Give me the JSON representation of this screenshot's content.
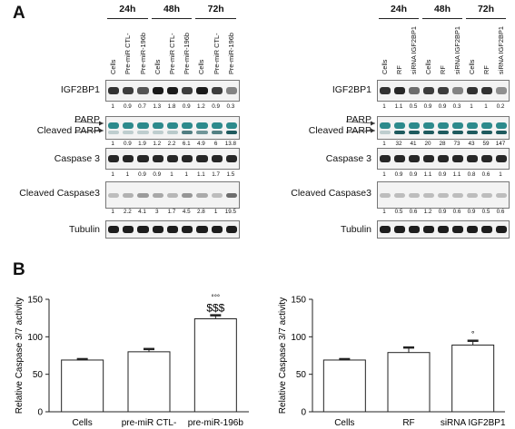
{
  "panel_a": {
    "letter": "A",
    "left": {
      "times": [
        "24h",
        "48h",
        "72h"
      ],
      "lanes": [
        "Cells",
        "Pre-miR CTL-",
        "Pre-miR-196b",
        "Cells",
        "Pre-miR CTL-",
        "Pre-miR-196b",
        "Cells",
        "Pre-miR CTL-",
        "Pre-miR-196b"
      ],
      "rows": [
        {
          "label": "IGF2BP1",
          "values": [
            "1",
            "0.9",
            "0.7",
            "1.3",
            "1.8",
            "0.9",
            "1.2",
            "0.9",
            "0.3"
          ]
        },
        {
          "label": "PARP",
          "label2": "Cleaved PARP",
          "values": [
            "1",
            "0.9",
            "1.9",
            "1.2",
            "2.2",
            "6.1",
            "4.9",
            "6",
            "13.8"
          ]
        },
        {
          "label": "Caspase 3",
          "values": [
            "1",
            "1",
            "0.9",
            "0.9",
            "1",
            "1",
            "1.1",
            "1.7",
            "1.5"
          ]
        },
        {
          "label": "Cleaved Caspase3",
          "values": [
            "1",
            "2.2",
            "4.1",
            "3",
            "1.7",
            "4.5",
            "2.8",
            "1",
            "19.5"
          ]
        },
        {
          "label": "Tubulin",
          "values": []
        }
      ]
    },
    "right": {
      "times": [
        "24h",
        "48h",
        "72h"
      ],
      "lanes": [
        "Cells",
        "RF",
        "siRNA IGF2BP1",
        "Cells",
        "RF",
        "siRNA IGF2BP1",
        "Cells",
        "RF",
        "siRNA IGF2BP1"
      ],
      "rows": [
        {
          "label": "IGF2BP1",
          "values": [
            "1",
            "1.1",
            "0.5",
            "0.9",
            "0.9",
            "0.3",
            "1",
            "1",
            "0.2"
          ]
        },
        {
          "label": "PARP",
          "label2": "Cleaved PARP",
          "values": [
            "1",
            "32",
            "41",
            "20",
            "28",
            "73",
            "43",
            "59",
            "147"
          ]
        },
        {
          "label": "Caspase 3",
          "values": [
            "1",
            "0.9",
            "0.9",
            "1.1",
            "0.9",
            "1.1",
            "0.8",
            "0.6",
            "1"
          ]
        },
        {
          "label": "Cleaved Caspase3",
          "values": [
            "1",
            "0.5",
            "0.6",
            "1.2",
            "0.9",
            "0.6",
            "0.9",
            "0.5",
            "0.6"
          ]
        },
        {
          "label": "Tubulin",
          "values": []
        }
      ]
    }
  },
  "panel_b": {
    "letter": "B"
  },
  "chart_data": [
    {
      "type": "bar",
      "categories": [
        "Cells",
        "pre-miR CTL-",
        "pre-miR-196b"
      ],
      "values": [
        69,
        80,
        124
      ],
      "errors": [
        1.5,
        4,
        5
      ],
      "annotations": {
        "top": "°°°",
        "stats": "$$$"
      },
      "ylabel": "Relative Caspase 3/7 activity",
      "ylim": [
        0,
        150
      ],
      "yticks": [
        "0",
        "50",
        "100",
        "150"
      ],
      "grid": false
    },
    {
      "type": "bar",
      "categories": [
        "Cells",
        "RF",
        "siRNA IGF2BP1"
      ],
      "values": [
        69,
        79,
        89
      ],
      "errors": [
        1.5,
        7,
        6
      ],
      "annotations": {
        "top": "°"
      },
      "ylabel": "Relative Caspase 3/7 activity",
      "ylim": [
        0,
        150
      ],
      "yticks": [
        "0",
        "50",
        "100",
        "150"
      ],
      "grid": false
    }
  ]
}
